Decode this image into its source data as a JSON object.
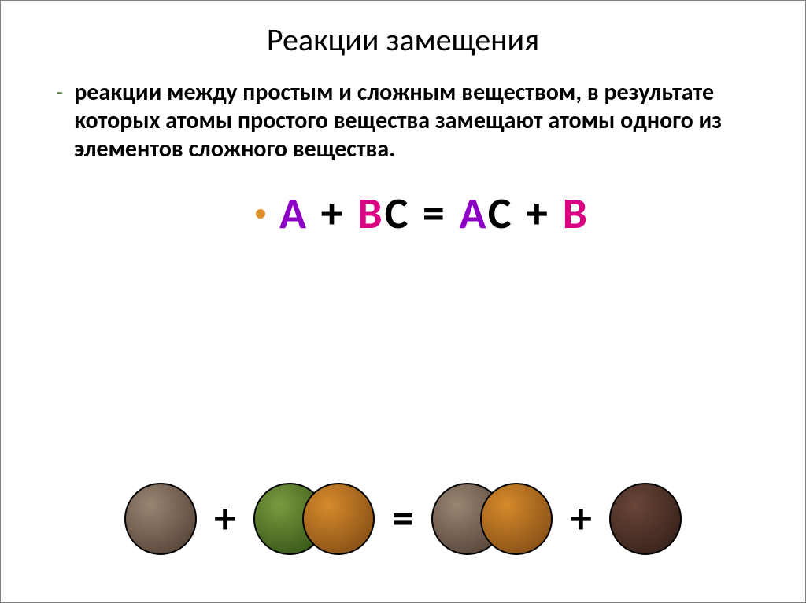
{
  "slide": {
    "title": "Реакции замещения",
    "description": "реакции между простым и сложным веществом, в результате которых атомы простого вещества замещают атомы одного из элементов сложного вещества.",
    "dash_color": "#4a7c3a",
    "bullet_color": "#e0902a"
  },
  "formula": {
    "parts": [
      {
        "text": "A",
        "color": "#8b00c4"
      },
      {
        "text": " + ",
        "color": "#000000"
      },
      {
        "text": "B",
        "color": "#d90082"
      },
      {
        "text": "C",
        "color": "#000000"
      },
      {
        "text": " = ",
        "color": "#000000"
      },
      {
        "text": "A",
        "color": "#8b00c4"
      },
      {
        "text": "C",
        "color": "#000000"
      },
      {
        "text": " + ",
        "color": "#000000"
      },
      {
        "text": "B",
        "color": "#d90082"
      }
    ]
  },
  "atoms": {
    "plus": "+",
    "equals": "=",
    "A_outline": "#000000",
    "A_fill_light": "#9a8572",
    "A_fill_dark": "#5a483c",
    "B_outline": "#000000",
    "B_fill_light": "#7a9a3f",
    "B_fill_dark": "#3a5a1a",
    "C_outline": "#000000",
    "C_fill_light": "#d68a2a",
    "C_fill_dark": "#8a5218",
    "B2_outline": "#000000",
    "B2_fill_light": "#6a4538",
    "B2_fill_dark": "#3a241c"
  }
}
